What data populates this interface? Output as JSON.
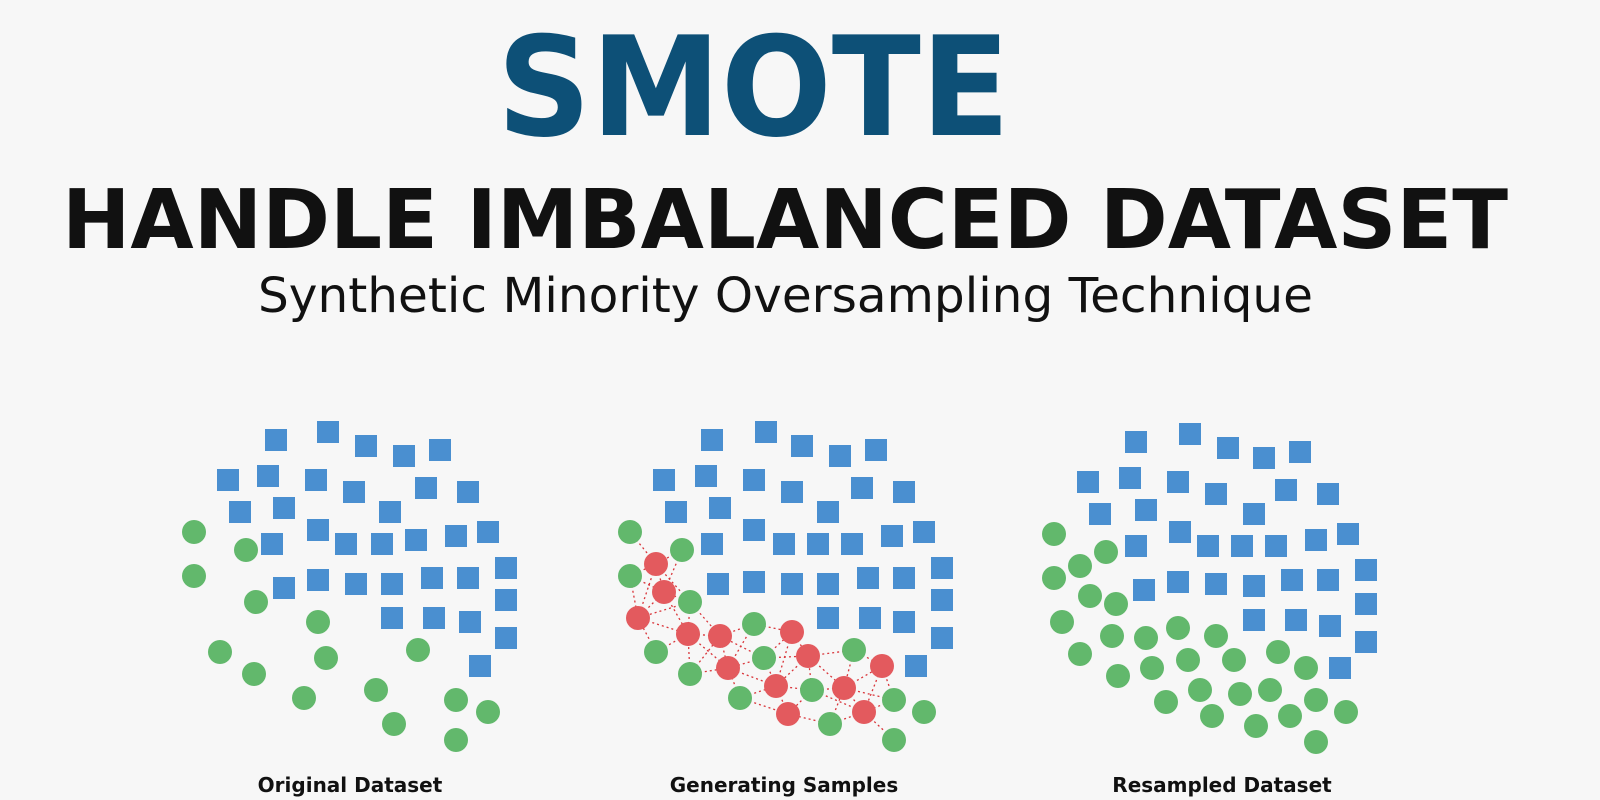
{
  "header": {
    "title": "SMOTE",
    "heading": "HANDLE IMBALANCED DATASET",
    "subtitle": "Synthetic Minority Oversampling Technique"
  },
  "panels": [
    {
      "label": "Original Dataset"
    },
    {
      "label": "Generating Samples"
    },
    {
      "label": "Resampled Dataset"
    }
  ]
}
